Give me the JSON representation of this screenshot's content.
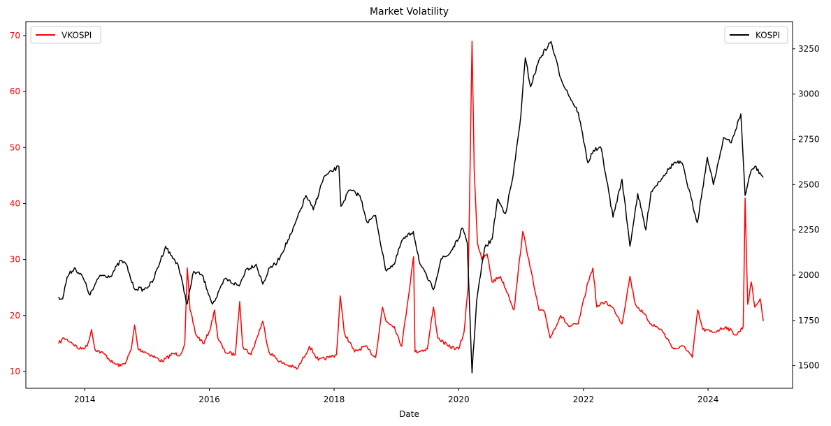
{
  "chart_data": {
    "type": "line",
    "title": "Market Volatility",
    "xlabel": "Date",
    "ylabel_left": "",
    "ylabel_right": "",
    "x_ticks": [
      "2014",
      "2016",
      "2018",
      "2020",
      "2022",
      "2024"
    ],
    "xlim": [
      "2013-01-21",
      "2025-05-10"
    ],
    "ylim_left": [
      7,
      72.5
    ],
    "ylim_right": [
      1375,
      3400
    ],
    "y_ticks_left": [
      10,
      20,
      30,
      40,
      50,
      60,
      70
    ],
    "y_ticks_right": [
      1500,
      1750,
      2000,
      2250,
      2500,
      2750,
      3000,
      3250
    ],
    "grid": false,
    "series": [
      {
        "name": "VKOSPI",
        "axis": "left",
        "color": "#ff0000",
        "legend": "top-left",
        "points": [
          [
            "2013-08-01",
            15.0
          ],
          [
            "2013-09-01",
            16.0
          ],
          [
            "2013-10-15",
            15.2
          ],
          [
            "2013-12-01",
            14.0
          ],
          [
            "2014-01-15",
            14.5
          ],
          [
            "2014-02-10",
            17.5
          ],
          [
            "2014-03-01",
            14.0
          ],
          [
            "2014-05-01",
            13.0
          ],
          [
            "2014-06-15",
            11.5
          ],
          [
            "2014-08-01",
            11.0
          ],
          [
            "2014-09-01",
            11.8
          ],
          [
            "2014-10-01",
            14.0
          ],
          [
            "2014-10-20",
            18.3
          ],
          [
            "2014-11-10",
            14.0
          ],
          [
            "2014-12-20",
            13.5
          ],
          [
            "2015-02-01",
            12.8
          ],
          [
            "2015-04-01",
            11.8
          ],
          [
            "2015-06-01",
            13.2
          ],
          [
            "2015-07-15",
            13.0
          ],
          [
            "2015-08-10",
            15.0
          ],
          [
            "2015-08-25",
            28.5
          ],
          [
            "2015-09-10",
            21.0
          ],
          [
            "2015-10-15",
            16.5
          ],
          [
            "2015-12-01",
            15.0
          ],
          [
            "2016-01-10",
            18.0
          ],
          [
            "2016-02-01",
            21.0
          ],
          [
            "2016-02-20",
            16.0
          ],
          [
            "2016-04-01",
            13.5
          ],
          [
            "2016-06-01",
            13.0
          ],
          [
            "2016-06-27",
            22.5
          ],
          [
            "2016-07-15",
            14.5
          ],
          [
            "2016-09-01",
            13.0
          ],
          [
            "2016-11-09",
            19.0
          ],
          [
            "2016-12-15",
            13.5
          ],
          [
            "2017-03-01",
            11.5
          ],
          [
            "2017-06-01",
            10.5
          ],
          [
            "2017-08-10",
            14.5
          ],
          [
            "2017-10-01",
            12.0
          ],
          [
            "2017-12-01",
            12.5
          ],
          [
            "2018-01-15",
            13.0
          ],
          [
            "2018-02-06",
            23.5
          ],
          [
            "2018-03-01",
            17.0
          ],
          [
            "2018-05-01",
            13.5
          ],
          [
            "2018-07-01",
            14.5
          ],
          [
            "2018-09-01",
            12.5
          ],
          [
            "2018-10-11",
            21.5
          ],
          [
            "2018-11-01",
            19.0
          ],
          [
            "2018-12-20",
            18.0
          ],
          [
            "2019-02-01",
            14.5
          ],
          [
            "2019-04-12",
            30.5
          ],
          [
            "2019-04-20",
            13.5
          ],
          [
            "2019-07-01",
            14.0
          ],
          [
            "2019-08-06",
            21.5
          ],
          [
            "2019-09-01",
            16.0
          ],
          [
            "2019-11-01",
            14.5
          ],
          [
            "2020-01-01",
            14.0
          ],
          [
            "2020-02-01",
            17.0
          ],
          [
            "2020-02-25",
            25.0
          ],
          [
            "2020-03-19",
            69.0
          ],
          [
            "2020-04-01",
            46.0
          ],
          [
            "2020-04-20",
            33.0
          ],
          [
            "2020-05-15",
            30.0
          ],
          [
            "2020-06-15",
            31.0
          ],
          [
            "2020-07-15",
            26.0
          ],
          [
            "2020-09-01",
            27.0
          ],
          [
            "2020-10-20",
            23.5
          ],
          [
            "2020-11-20",
            21.0
          ],
          [
            "2021-01-10",
            35.0
          ],
          [
            "2021-02-15",
            30.0
          ],
          [
            "2021-03-15",
            25.5
          ],
          [
            "2021-04-15",
            21.0
          ],
          [
            "2021-05-20",
            20.5
          ],
          [
            "2021-06-20",
            16.0
          ],
          [
            "2021-08-20",
            20.0
          ],
          [
            "2021-10-10",
            18.0
          ],
          [
            "2021-12-01",
            18.5
          ],
          [
            "2022-01-28",
            26.0
          ],
          [
            "2022-02-25",
            28.5
          ],
          [
            "2022-03-20",
            21.5
          ],
          [
            "2022-05-10",
            22.5
          ],
          [
            "2022-07-01",
            21.0
          ],
          [
            "2022-08-15",
            18.5
          ],
          [
            "2022-09-30",
            27.0
          ],
          [
            "2022-11-01",
            22.0
          ],
          [
            "2022-12-15",
            20.5
          ],
          [
            "2023-02-01",
            18.5
          ],
          [
            "2023-04-01",
            17.5
          ],
          [
            "2023-06-15",
            14.0
          ],
          [
            "2023-08-15",
            14.5
          ],
          [
            "2023-10-01",
            12.5
          ],
          [
            "2023-11-01",
            21.0
          ],
          [
            "2023-12-01",
            17.5
          ],
          [
            "2024-02-01",
            17.0
          ],
          [
            "2024-04-15",
            18.0
          ],
          [
            "2024-06-15",
            16.5
          ],
          [
            "2024-07-25",
            18.0
          ],
          [
            "2024-08-05",
            41.0
          ],
          [
            "2024-08-20",
            22.0
          ],
          [
            "2024-09-10",
            26.0
          ],
          [
            "2024-10-01",
            21.5
          ],
          [
            "2024-11-01",
            23.0
          ],
          [
            "2024-11-20",
            19.0
          ]
        ]
      },
      {
        "name": "KOSPI",
        "axis": "right",
        "color": "#000000",
        "legend": "top-right",
        "points": [
          [
            "2013-08-01",
            1880
          ],
          [
            "2013-08-25",
            1870
          ],
          [
            "2013-09-20",
            1990
          ],
          [
            "2013-11-01",
            2040
          ],
          [
            "2013-12-20",
            1990
          ],
          [
            "2014-02-01",
            1890
          ],
          [
            "2014-04-01",
            2000
          ],
          [
            "2014-06-01",
            1995
          ],
          [
            "2014-07-30",
            2080
          ],
          [
            "2014-09-01",
            2060
          ],
          [
            "2014-10-15",
            1930
          ],
          [
            "2014-12-15",
            1920
          ],
          [
            "2015-02-01",
            1960
          ],
          [
            "2015-04-20",
            2160
          ],
          [
            "2015-05-20",
            2110
          ],
          [
            "2015-07-01",
            2060
          ],
          [
            "2015-08-24",
            1840
          ],
          [
            "2015-10-01",
            2020
          ],
          [
            "2015-11-20",
            2000
          ],
          [
            "2016-01-20",
            1840
          ],
          [
            "2016-02-15",
            1880
          ],
          [
            "2016-04-01",
            1980
          ],
          [
            "2016-06-24",
            1940
          ],
          [
            "2016-08-01",
            2030
          ],
          [
            "2016-10-01",
            2060
          ],
          [
            "2016-11-09",
            1950
          ],
          [
            "2016-12-20",
            2040
          ],
          [
            "2017-02-01",
            2070
          ],
          [
            "2017-05-01",
            2240
          ],
          [
            "2017-07-20",
            2440
          ],
          [
            "2017-09-01",
            2360
          ],
          [
            "2017-11-01",
            2540
          ],
          [
            "2018-01-29",
            2600
          ],
          [
            "2018-02-10",
            2380
          ],
          [
            "2018-04-01",
            2470
          ],
          [
            "2018-06-01",
            2440
          ],
          [
            "2018-07-15",
            2290
          ],
          [
            "2018-09-01",
            2330
          ],
          [
            "2018-10-29",
            2030
          ],
          [
            "2018-12-20",
            2060
          ],
          [
            "2019-02-01",
            2190
          ],
          [
            "2019-04-10",
            2240
          ],
          [
            "2019-05-20",
            2060
          ],
          [
            "2019-08-06",
            1920
          ],
          [
            "2019-09-20",
            2090
          ],
          [
            "2019-11-01",
            2110
          ],
          [
            "2019-12-31",
            2200
          ],
          [
            "2020-01-20",
            2260
          ],
          [
            "2020-02-20",
            2180
          ],
          [
            "2020-03-19",
            1460
          ],
          [
            "2020-04-15",
            1860
          ],
          [
            "2020-06-01",
            2150
          ],
          [
            "2020-07-15",
            2200
          ],
          [
            "2020-08-15",
            2420
          ],
          [
            "2020-10-01",
            2340
          ],
          [
            "2020-11-15",
            2550
          ],
          [
            "2020-12-30",
            2880
          ],
          [
            "2021-01-25",
            3200
          ],
          [
            "2021-02-25",
            3040
          ],
          [
            "2021-04-20",
            3200
          ],
          [
            "2021-06-25",
            3290
          ],
          [
            "2021-08-20",
            3090
          ],
          [
            "2021-10-15",
            2980
          ],
          [
            "2021-12-01",
            2900
          ],
          [
            "2022-01-27",
            2620
          ],
          [
            "2022-03-01",
            2690
          ],
          [
            "2022-04-15",
            2700
          ],
          [
            "2022-06-23",
            2320
          ],
          [
            "2022-08-15",
            2530
          ],
          [
            "2022-09-30",
            2160
          ],
          [
            "2022-11-15",
            2450
          ],
          [
            "2023-01-01",
            2250
          ],
          [
            "2023-02-01",
            2460
          ],
          [
            "2023-04-15",
            2550
          ],
          [
            "2023-06-15",
            2620
          ],
          [
            "2023-08-01",
            2620
          ],
          [
            "2023-10-30",
            2290
          ],
          [
            "2023-12-28",
            2650
          ],
          [
            "2024-02-01",
            2500
          ],
          [
            "2024-04-01",
            2760
          ],
          [
            "2024-05-15",
            2730
          ],
          [
            "2024-07-11",
            2890
          ],
          [
            "2024-08-05",
            2440
          ],
          [
            "2024-09-10",
            2580
          ],
          [
            "2024-10-01",
            2600
          ],
          [
            "2024-11-20",
            2540
          ]
        ]
      }
    ]
  }
}
